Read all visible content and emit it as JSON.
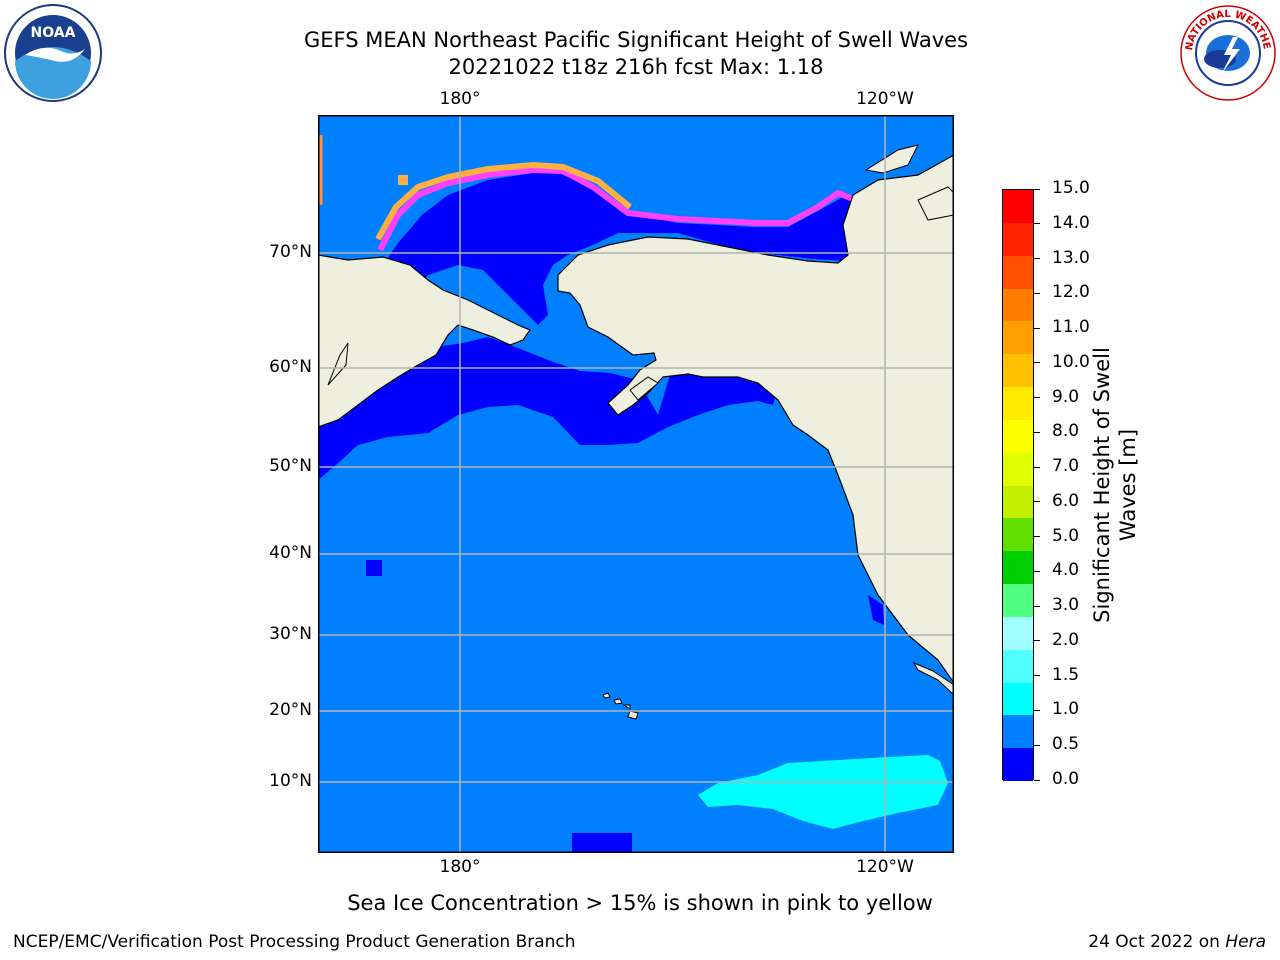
{
  "title_line1": "GEFS MEAN Northeast Pacific Significant Height of Swell Waves",
  "title_line2": "20221022 t18z 216h fcst   Max: 1.18",
  "map": {
    "lon_labels_top": [
      "180°",
      "120°W"
    ],
    "lon_labels_bottom": [
      "180°",
      "120°W"
    ],
    "lat_labels": [
      "70°N",
      "60°N",
      "50°N",
      "40°N",
      "30°N",
      "20°N",
      "10°N"
    ],
    "colors": {
      "ocean_low": "#0000ff",
      "ocean_main": "#0080ff",
      "ocean_cyan": "#00ffff",
      "land": "#efefdf",
      "ice_pink": "#ff40ff",
      "ice_orange": "#ffb040",
      "grid": "#b4b4b4"
    }
  },
  "colorbar": {
    "title_line1": "Significant Height of Swell",
    "title_line2": "Waves [m]",
    "ticks": [
      "15.0",
      "14.0",
      "13.0",
      "12.0",
      "11.0",
      "10.0",
      "9.0",
      "8.0",
      "7.0",
      "6.0",
      "5.0",
      "4.0",
      "3.0",
      "2.0",
      "1.5",
      "1.0",
      "0.5",
      "0.0"
    ],
    "colors_top_to_bottom": [
      "#ff0000",
      "#ff2400",
      "#ff5000",
      "#ff7c00",
      "#ffa000",
      "#ffc000",
      "#ffea00",
      "#ffff00",
      "#e0ff00",
      "#c0f000",
      "#60e000",
      "#00d000",
      "#50ff80",
      "#a0ffff",
      "#50ffff",
      "#00ffff",
      "#0080ff",
      "#0000ff"
    ]
  },
  "note": "Sea Ice Concentration > 15% is shown in pink to yellow",
  "credit_left": "NCEP/EMC/Verification Post Processing Product Generation Branch",
  "credit_right_date": "24 Oct 2022 on ",
  "credit_right_host": "Hera",
  "logos": {
    "left_text": "NOAA",
    "right_text": "NATIONAL WEATHER SERVICE"
  }
}
